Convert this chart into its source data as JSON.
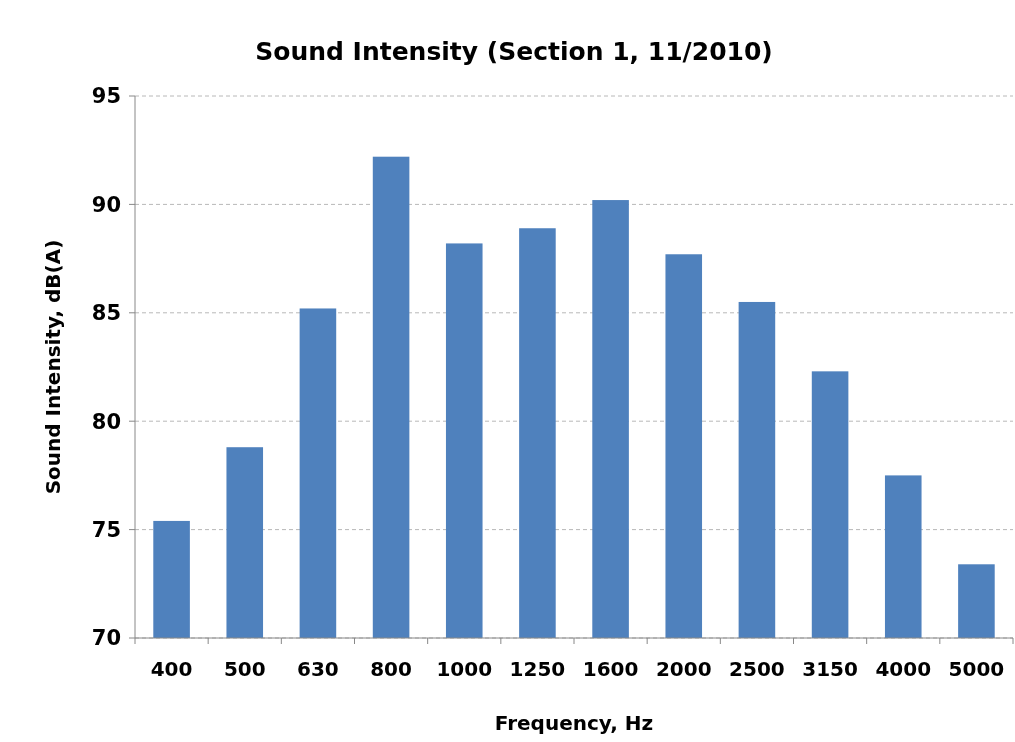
{
  "chart_data": {
    "type": "bar",
    "title": "Sound Intensity (Section 1, 11/2010)",
    "xlabel": "Frequency, Hz",
    "ylabel": "Sound Intensity, dB(A)",
    "categories": [
      "400",
      "500",
      "630",
      "800",
      "1000",
      "1250",
      "1600",
      "2000",
      "2500",
      "3150",
      "4000",
      "5000"
    ],
    "values": [
      75.4,
      78.8,
      85.2,
      92.2,
      88.2,
      88.9,
      90.2,
      87.7,
      85.5,
      82.3,
      77.5,
      73.4
    ],
    "color": "#4f81bd",
    "ylim": [
      70,
      95
    ],
    "yticks": [
      70,
      75,
      80,
      85,
      90,
      95
    ],
    "grid": "y"
  }
}
